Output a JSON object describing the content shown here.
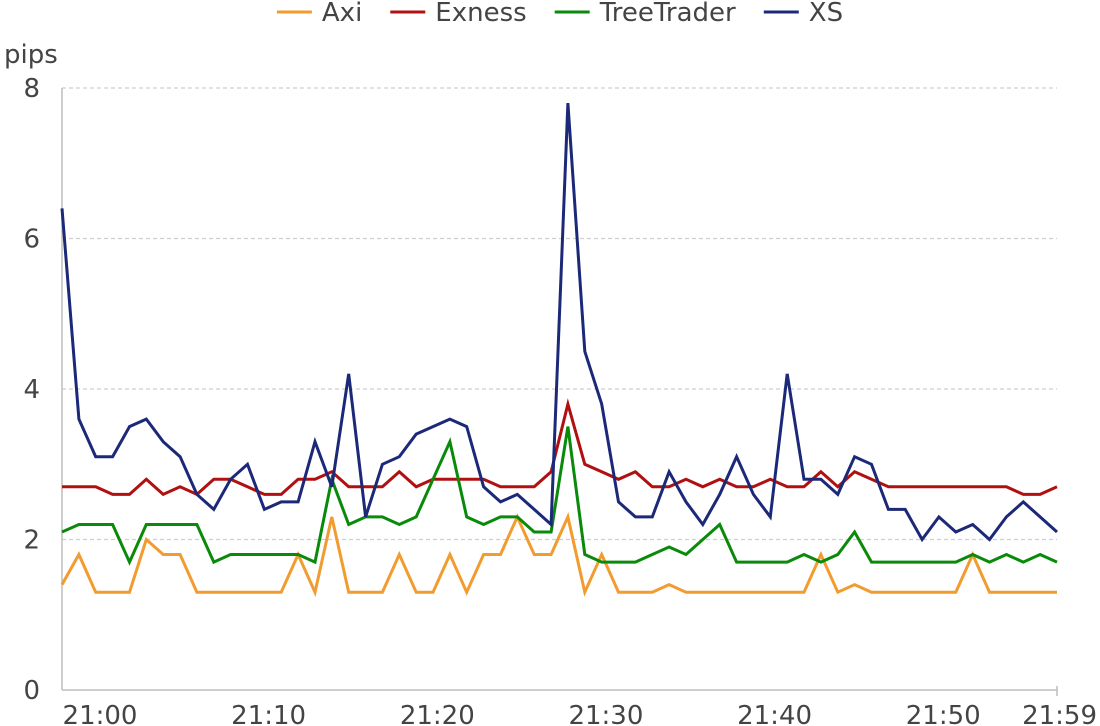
{
  "chart_data": {
    "type": "line",
    "ylabel": "pips",
    "ylim": [
      0,
      8
    ],
    "yticks": [
      0,
      2,
      4,
      6,
      8
    ],
    "xlim": [
      0,
      59
    ],
    "xtick_values": [
      0,
      10,
      20,
      30,
      40,
      50,
      59
    ],
    "xtick_labels": [
      "21:00",
      "21:10",
      "21:20",
      "21:30",
      "21:40",
      "21:50",
      "21:59"
    ],
    "grid": "horizontal dashed",
    "legend": "top",
    "x": [
      0,
      1,
      2,
      3,
      4,
      5,
      6,
      7,
      8,
      9,
      10,
      11,
      12,
      13,
      14,
      15,
      16,
      17,
      18,
      19,
      20,
      21,
      22,
      23,
      24,
      25,
      26,
      27,
      28,
      29,
      30,
      31,
      32,
      33,
      34,
      35,
      36,
      37,
      38,
      39,
      40,
      41,
      42,
      43,
      44,
      45,
      46,
      47,
      48,
      49,
      50,
      51,
      52,
      53,
      54,
      55,
      56,
      57,
      58,
      59
    ],
    "series": [
      {
        "name": "Axi",
        "color": "#f29b2e",
        "values": [
          1.4,
          1.8,
          1.3,
          1.3,
          1.3,
          2.0,
          1.8,
          1.8,
          1.3,
          1.3,
          1.3,
          1.3,
          1.3,
          1.3,
          1.8,
          1.3,
          2.3,
          1.3,
          1.3,
          1.3,
          1.8,
          1.3,
          1.3,
          1.8,
          1.3,
          1.8,
          1.8,
          2.3,
          1.8,
          1.8,
          2.3,
          1.3,
          1.8,
          1.3,
          1.3,
          1.3,
          1.4,
          1.3,
          1.3,
          1.3,
          1.3,
          1.3,
          1.3,
          1.3,
          1.3,
          1.8,
          1.3,
          1.4,
          1.3,
          1.3,
          1.3,
          1.3,
          1.3,
          1.3,
          1.8,
          1.3,
          1.3,
          1.3,
          1.3,
          1.3
        ]
      },
      {
        "name": "Exness",
        "color": "#b01010",
        "values": [
          2.7,
          2.7,
          2.7,
          2.6,
          2.6,
          2.8,
          2.6,
          2.7,
          2.6,
          2.8,
          2.8,
          2.7,
          2.6,
          2.6,
          2.8,
          2.8,
          2.9,
          2.7,
          2.7,
          2.7,
          2.9,
          2.7,
          2.8,
          2.8,
          2.8,
          2.8,
          2.7,
          2.7,
          2.7,
          2.9,
          3.8,
          3.0,
          2.9,
          2.8,
          2.9,
          2.7,
          2.7,
          2.8,
          2.7,
          2.8,
          2.7,
          2.7,
          2.8,
          2.7,
          2.7,
          2.9,
          2.7,
          2.9,
          2.8,
          2.7,
          2.7,
          2.7,
          2.7,
          2.7,
          2.7,
          2.7,
          2.7,
          2.6,
          2.6,
          2.7
        ]
      },
      {
        "name": "TreeTrader",
        "color": "#0a8a0a",
        "values": [
          2.1,
          2.2,
          2.2,
          2.2,
          1.7,
          2.2,
          2.2,
          2.2,
          2.2,
          1.7,
          1.8,
          1.8,
          1.8,
          1.8,
          1.8,
          1.7,
          2.8,
          2.2,
          2.3,
          2.3,
          2.2,
          2.3,
          2.8,
          3.3,
          2.3,
          2.2,
          2.3,
          2.3,
          2.1,
          2.1,
          3.5,
          1.8,
          1.7,
          1.7,
          1.7,
          1.8,
          1.9,
          1.8,
          2.0,
          2.2,
          1.7,
          1.7,
          1.7,
          1.7,
          1.8,
          1.7,
          1.8,
          2.1,
          1.7,
          1.7,
          1.7,
          1.7,
          1.7,
          1.7,
          1.8,
          1.7,
          1.8,
          1.7,
          1.8,
          1.7
        ]
      },
      {
        "name": "XS",
        "color": "#1c2878",
        "values": [
          6.4,
          3.6,
          3.1,
          3.1,
          3.5,
          3.6,
          3.3,
          3.1,
          2.6,
          2.4,
          2.8,
          3.0,
          2.4,
          2.5,
          2.5,
          3.3,
          2.7,
          4.2,
          2.3,
          3.0,
          3.1,
          3.4,
          3.5,
          3.6,
          3.5,
          2.7,
          2.5,
          2.6,
          2.4,
          2.2,
          7.8,
          4.5,
          3.8,
          2.5,
          2.3,
          2.3,
          2.9,
          2.5,
          2.2,
          2.6,
          3.1,
          2.6,
          2.3,
          4.2,
          2.8,
          2.8,
          2.6,
          3.1,
          3.0,
          2.4,
          2.4,
          2.0,
          2.3,
          2.1,
          2.2,
          2.0,
          2.3,
          2.5,
          2.3,
          2.1
        ]
      }
    ]
  }
}
